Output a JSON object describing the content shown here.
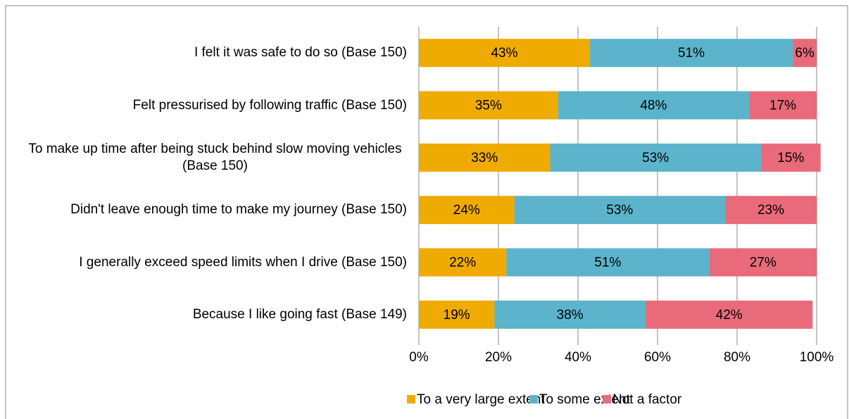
{
  "chart_data": {
    "type": "stacked_barh",
    "categories": [
      "I felt it was safe to do so (Base 150)",
      "Felt pressurised by following traffic (Base 150)",
      "To make up time after being stuck behind slow moving vehicles (Base 150)",
      "Didn't leave enough time to make my journey (Base 150)",
      "I generally exceed speed limits when I drive (Base 150)",
      "Because I like going fast (Base 149)"
    ],
    "series": [
      {
        "name": "To a very large extent",
        "color": "#f0ab00",
        "values": [
          43,
          35,
          33,
          24,
          22,
          19
        ],
        "value_labels": [
          "43%",
          "35%",
          "33%",
          "24%",
          "22%",
          "19%"
        ]
      },
      {
        "name": "To some extent",
        "color": "#5bb4cb",
        "values": [
          51,
          48,
          53,
          53,
          51,
          38
        ],
        "value_labels": [
          "51%",
          "48%",
          "53%",
          "53%",
          "51%",
          "38%"
        ]
      },
      {
        "name": "Not a factor",
        "color": "#e96b7b",
        "values": [
          6,
          17,
          15,
          23,
          27,
          42
        ],
        "value_labels": [
          "6%",
          "17%",
          "15%",
          "23%",
          "27%",
          "42%"
        ]
      }
    ],
    "xlim": [
      0,
      100
    ],
    "xticks": [
      {
        "value": 0,
        "label": "0%"
      },
      {
        "value": 20,
        "label": "20%"
      },
      {
        "value": 40,
        "label": "40%"
      },
      {
        "value": 60,
        "label": "60%"
      },
      {
        "value": 80,
        "label": "80%"
      },
      {
        "value": 100,
        "label": "100%"
      }
    ],
    "grid": true,
    "legend": "bottom"
  }
}
